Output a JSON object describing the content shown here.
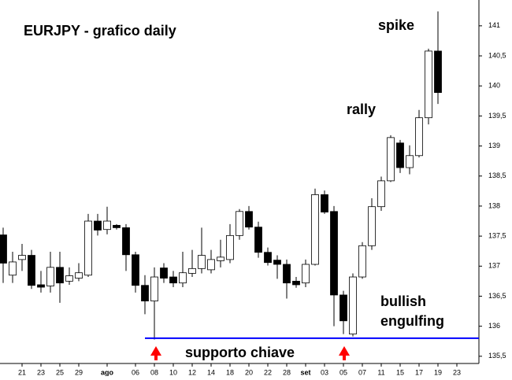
{
  "chart_data": {
    "type": "candlestick",
    "title": "EURJPY - grafico daily",
    "annotations": [
      "spike",
      "rally",
      "bullish",
      "engulfing",
      "supporto chiave"
    ],
    "categories": [
      null,
      null,
      "21",
      null,
      "23",
      null,
      "25",
      null,
      "29",
      null,
      null,
      "ago",
      null,
      null,
      "06",
      null,
      "08",
      null,
      "10",
      null,
      "12",
      null,
      "14",
      null,
      "18",
      null,
      "20",
      null,
      "22",
      null,
      "28",
      null,
      "set",
      null,
      "03",
      null,
      "05",
      null,
      "07",
      null,
      "11",
      null,
      "15",
      null,
      "17",
      null,
      "19",
      null,
      "23"
    ],
    "open": [
      137.52,
      136.85,
      137.11,
      137.18,
      136.69,
      136.67,
      136.98,
      136.75,
      136.8,
      136.85,
      137.75,
      137.61,
      137.68,
      137.64,
      137.19,
      136.68,
      136.42,
      136.97,
      136.82,
      136.72,
      136.88,
      136.96,
      136.94,
      137.09,
      137.11,
      137.51,
      137.91,
      137.65,
      137.23,
      137.1,
      137.03,
      136.75,
      136.72,
      137.03,
      138.19,
      137.91,
      136.52,
      135.87,
      136.82,
      137.34,
      137.99,
      138.42,
      139.05,
      138.64,
      138.84,
      139.47,
      140.58,
      null,
      null
    ],
    "high": [
      137.64,
      137.24,
      137.37,
      137.27,
      136.92,
      137.24,
      137.24,
      136.98,
      137.05,
      137.87,
      137.87,
      137.99,
      137.7,
      137.7,
      137.24,
      136.85,
      136.98,
      137.05,
      136.92,
      137.24,
      137.27,
      137.64,
      137.27,
      137.44,
      137.7,
      137.95,
      138.0,
      137.74,
      137.31,
      137.18,
      137.11,
      136.82,
      137.11,
      138.29,
      138.26,
      138.0,
      136.59,
      136.88,
      137.4,
      138.13,
      138.49,
      139.18,
      139.1,
      139.01,
      139.6,
      140.62,
      141.24,
      null,
      null
    ],
    "low": [
      136.72,
      136.72,
      136.92,
      136.62,
      136.56,
      136.56,
      136.39,
      136.69,
      136.75,
      136.82,
      137.51,
      137.53,
      137.61,
      136.92,
      136.56,
      136.2,
      135.78,
      136.72,
      136.65,
      136.65,
      136.82,
      136.88,
      136.88,
      136.98,
      137.05,
      137.44,
      137.61,
      137.14,
      137.01,
      136.79,
      136.46,
      136.64,
      136.65,
      137.01,
      137.87,
      136.0,
      135.87,
      135.83,
      136.79,
      137.27,
      137.92,
      138.4,
      138.55,
      138.53,
      138.81,
      139.36,
      139.7,
      null,
      null
    ],
    "close": [
      137.05,
      137.07,
      137.18,
      136.68,
      136.65,
      136.98,
      136.72,
      136.84,
      136.89,
      137.75,
      137.6,
      137.75,
      137.64,
      137.19,
      136.68,
      136.42,
      136.82,
      136.8,
      136.72,
      136.89,
      136.96,
      137.18,
      137.11,
      137.15,
      137.51,
      137.91,
      137.65,
      137.23,
      137.06,
      137.03,
      136.72,
      136.69,
      137.03,
      138.19,
      137.9,
      136.52,
      136.09,
      136.82,
      137.34,
      137.99,
      138.42,
      139.14,
      138.64,
      138.84,
      139.47,
      140.58,
      139.89,
      null,
      null
    ],
    "up_color": "#ffffff",
    "down_color": "#000000",
    "hlines": [
      {
        "value": 135.8,
        "color": "#0000ff"
      }
    ],
    "ylim": [
      135.38,
      141.43
    ],
    "yticks": [
      141,
      {
        "value": 140.5,
        "label": "140,5"
      },
      140,
      {
        "value": 139.5,
        "label": "139,5"
      },
      139,
      {
        "value": 138.5,
        "label": "138,5"
      },
      138,
      {
        "value": 137.5,
        "label": "137,5"
      },
      137,
      {
        "value": 136.5,
        "label": "136,5"
      },
      136,
      {
        "value": 135.5,
        "label": "135,5"
      }
    ]
  }
}
